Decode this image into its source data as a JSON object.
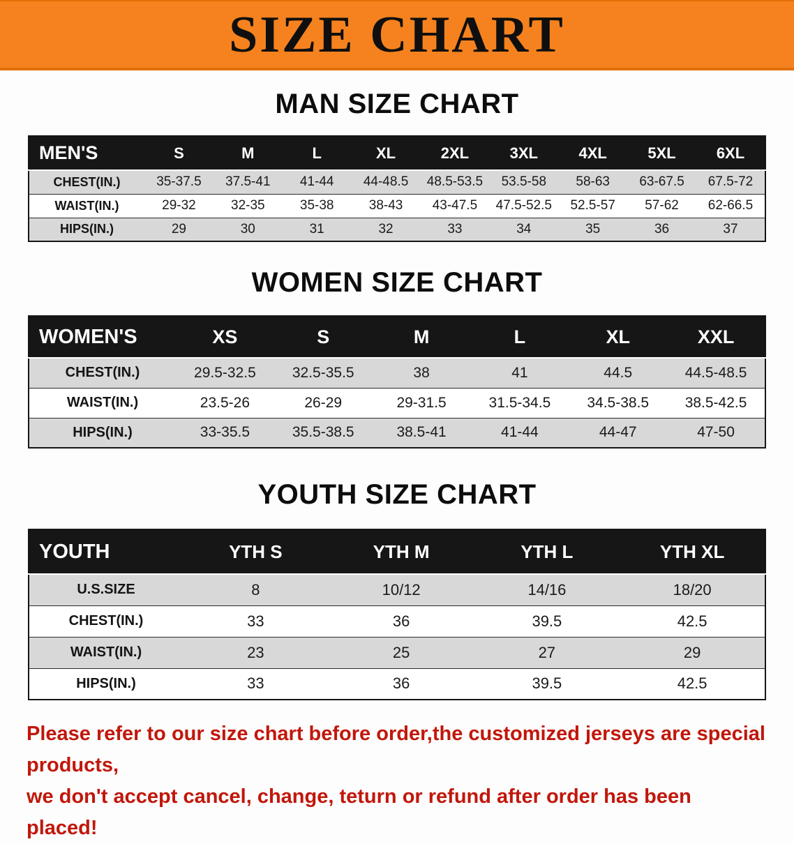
{
  "banner": {
    "title": "SIZE CHART",
    "background_color": "#f5821f",
    "text_color": "#0f0f0f"
  },
  "colors": {
    "table_header_bg": "#161616",
    "table_stripe_gray": "#d8d8d8",
    "notice_red": "#c1170b"
  },
  "sections": [
    {
      "id": "men",
      "heading": "MAN SIZE CHART",
      "table": {
        "header": [
          "MEN'S",
          "S",
          "M",
          "L",
          "XL",
          "2XL",
          "3XL",
          "4XL",
          "5XL",
          "6XL"
        ],
        "rows": [
          {
            "label": "CHEST(IN.)",
            "values": [
              "35-37.5",
              "37.5-41",
              "41-44",
              "44-48.5",
              "48.5-53.5",
              "53.5-58",
              "58-63",
              "63-67.5",
              "67.5-72"
            ]
          },
          {
            "label": "WAIST(IN.)",
            "values": [
              "29-32",
              "32-35",
              "35-38",
              "38-43",
              "43-47.5",
              "47.5-52.5",
              "52.5-57",
              "57-62",
              "62-66.5"
            ]
          },
          {
            "label": "HIPS(IN.)",
            "values": [
              "29",
              "30",
              "31",
              "32",
              "33",
              "34",
              "35",
              "36",
              "37"
            ]
          }
        ]
      }
    },
    {
      "id": "women",
      "heading": "WOMEN SIZE CHART",
      "table": {
        "header": [
          "WOMEN'S",
          "XS",
          "S",
          "M",
          "L",
          "XL",
          "XXL"
        ],
        "rows": [
          {
            "label": "CHEST(IN.)",
            "values": [
              "29.5-32.5",
              "32.5-35.5",
              "38",
              "41",
              "44.5",
              "44.5-48.5"
            ]
          },
          {
            "label": "WAIST(IN.)",
            "values": [
              "23.5-26",
              "26-29",
              "29-31.5",
              "31.5-34.5",
              "34.5-38.5",
              "38.5-42.5"
            ]
          },
          {
            "label": "HIPS(IN.)",
            "values": [
              "33-35.5",
              "35.5-38.5",
              "38.5-41",
              "41-44",
              "44-47",
              "47-50"
            ]
          }
        ]
      }
    },
    {
      "id": "youth",
      "heading": "YOUTH SIZE CHART",
      "table": {
        "header": [
          "YOUTH",
          "YTH S",
          "YTH M",
          "YTH L",
          "YTH XL"
        ],
        "rows": [
          {
            "label": "U.S.SIZE",
            "values": [
              "8",
              "10/12",
              "14/16",
              "18/20"
            ]
          },
          {
            "label": "CHEST(IN.)",
            "values": [
              "33",
              "36",
              "39.5",
              "42.5"
            ]
          },
          {
            "label": "WAIST(IN.)",
            "values": [
              "23",
              "25",
              "27",
              "29"
            ]
          },
          {
            "label": "HIPS(IN.)",
            "values": [
              "33",
              "36",
              "39.5",
              "42.5"
            ]
          }
        ]
      }
    }
  ],
  "footer": {
    "line1": "Please refer to our size chart before order,the customized jerseys are special products,",
    "line2": "we don't accept cancel, change, teturn or refund after order has been placed!"
  }
}
